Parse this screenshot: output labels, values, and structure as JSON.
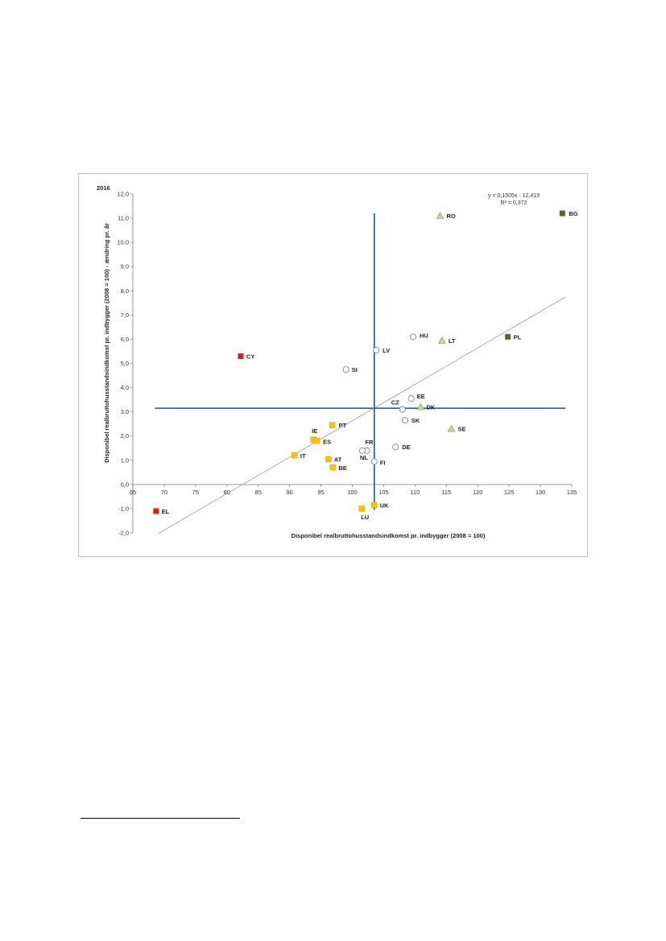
{
  "chart_data": {
    "type": "scatter",
    "corner_label": "2016",
    "xlabel": "Disponibel realbruttohusstandsindkomst pr. indbygger (2008 = 100)",
    "ylabel": "Disponibel realbruttohusstandsindkomst pr. indbygger (2008 = 100) - ændring pr. år",
    "xlim": [
      65,
      135
    ],
    "ylim": [
      -2,
      12
    ],
    "x_ticks": [
      "65",
      "70",
      "75",
      "80",
      "85",
      "90",
      "95",
      "100",
      "105",
      "110",
      "115",
      "120",
      "125",
      "130",
      "135"
    ],
    "y_ticks": [
      "12,0",
      "11,0",
      "10,0",
      "9,0",
      "8,0",
      "7,0",
      "6,0",
      "5,0",
      "4,0",
      "3,0",
      "2,0",
      "1,0",
      "0,0",
      "-1,0",
      "-2,0"
    ],
    "equation": "y = 0,1505x - 12,419",
    "r_squared": "R² = 0,372",
    "trendline": {
      "slope": 0.1505,
      "intercept": -12.419,
      "x_range": [
        69,
        134
      ]
    },
    "reference_lines": {
      "x": 103.5,
      "y": 3.15
    },
    "groups": {
      "red_square": "#e31a1c",
      "dark_green_square": "#4a6b2a",
      "light_green_triangle": "#c4d79b",
      "white_circle": "#ffffff",
      "yellow_square": "#ffc000"
    },
    "points": [
      {
        "label": "BG",
        "x": 133.5,
        "y": 11.2,
        "group": "dark_green_square"
      },
      {
        "label": "RO",
        "x": 114,
        "y": 11.1,
        "group": "light_green_triangle"
      },
      {
        "label": "PL",
        "x": 124.8,
        "y": 6.1,
        "group": "dark_green_square"
      },
      {
        "label": "LT",
        "x": 114.3,
        "y": 5.95,
        "group": "light_green_triangle"
      },
      {
        "label": "HU",
        "x": 109.7,
        "y": 6.1,
        "group": "white_circle"
      },
      {
        "label": "LV",
        "x": 103.8,
        "y": 5.55,
        "group": "white_circle"
      },
      {
        "label": "SI",
        "x": 99,
        "y": 4.75,
        "group": "white_circle"
      },
      {
        "label": "CY",
        "x": 82.2,
        "y": 5.3,
        "group": "red_square"
      },
      {
        "label": "EE",
        "x": 109.4,
        "y": 3.55,
        "group": "white_circle"
      },
      {
        "label": "CZ",
        "x": 108,
        "y": 3.1,
        "group": "white_circle"
      },
      {
        "label": "DK",
        "x": 110.9,
        "y": 3.2,
        "group": "light_green_triangle"
      },
      {
        "label": "SK",
        "x": 108.4,
        "y": 2.65,
        "group": "white_circle"
      },
      {
        "label": "SE",
        "x": 115.8,
        "y": 2.3,
        "group": "light_green_triangle"
      },
      {
        "label": "PT",
        "x": 96.8,
        "y": 2.45,
        "group": "yellow_square"
      },
      {
        "label": "IE",
        "x": 93.8,
        "y": 1.85,
        "group": "yellow_square"
      },
      {
        "label": "ES",
        "x": 94.3,
        "y": 1.8,
        "group": "yellow_square"
      },
      {
        "label": "FR",
        "x": 102.3,
        "y": 1.4,
        "group": "white_circle"
      },
      {
        "label": "NL",
        "x": 101.6,
        "y": 1.4,
        "group": "white_circle"
      },
      {
        "label": "DE",
        "x": 106.9,
        "y": 1.55,
        "group": "white_circle"
      },
      {
        "label": "IT",
        "x": 90.8,
        "y": 1.2,
        "group": "yellow_square"
      },
      {
        "label": "AT",
        "x": 96.2,
        "y": 1.05,
        "group": "yellow_square"
      },
      {
        "label": "FI",
        "x": 103.5,
        "y": 0.95,
        "group": "white_circle"
      },
      {
        "label": "BE",
        "x": 96.9,
        "y": 0.7,
        "group": "yellow_square"
      },
      {
        "label": "UK",
        "x": 103.5,
        "y": -0.85,
        "group": "yellow_square"
      },
      {
        "label": "LU",
        "x": 101.5,
        "y": -1.0,
        "group": "yellow_square"
      },
      {
        "label": "EL",
        "x": 68.7,
        "y": -1.1,
        "group": "red_square"
      }
    ]
  }
}
